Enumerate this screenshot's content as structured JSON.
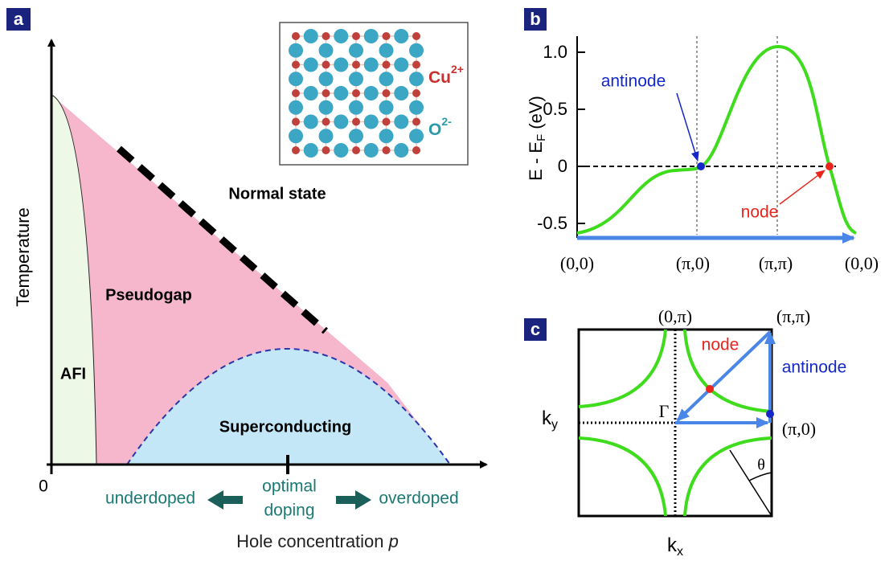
{
  "panels": [
    {
      "label": "a",
      "y_axis": "Temperature",
      "origin": "0",
      "x_axis": "Hole concentration",
      "x_axis_symbol": "p",
      "regions": [
        "Normal state",
        "Pseudogap",
        "AFI",
        "Superconducting"
      ],
      "doping": [
        "underdoped",
        "optimal",
        "doping",
        "overdoped"
      ],
      "inset": {
        "ions": [
          {
            "name": "Cu",
            "charge": "2+"
          },
          {
            "name": "O",
            "charge": "2-"
          }
        ]
      }
    },
    {
      "label": "b",
      "y_axis": {
        "main": "E - E",
        "sub": "F",
        "unit": "(eV)"
      },
      "y_ticks": [
        "1.0",
        "0.5",
        "0",
        "-0.5"
      ],
      "x_ticks": [
        "(0,0)",
        "(π,0)",
        "(π,π)",
        "(0,0)"
      ],
      "annotations": [
        "antinode",
        "node"
      ]
    },
    {
      "label": "c",
      "corners": [
        "(0,π)",
        "(π,π)",
        "(π,0)"
      ],
      "center": "Γ",
      "angle": "θ",
      "annotations": [
        "node",
        "antinode"
      ],
      "y_axis": {
        "main": "k",
        "sub": "y"
      },
      "x_axis": {
        "main": "k",
        "sub": "x"
      }
    }
  ]
}
